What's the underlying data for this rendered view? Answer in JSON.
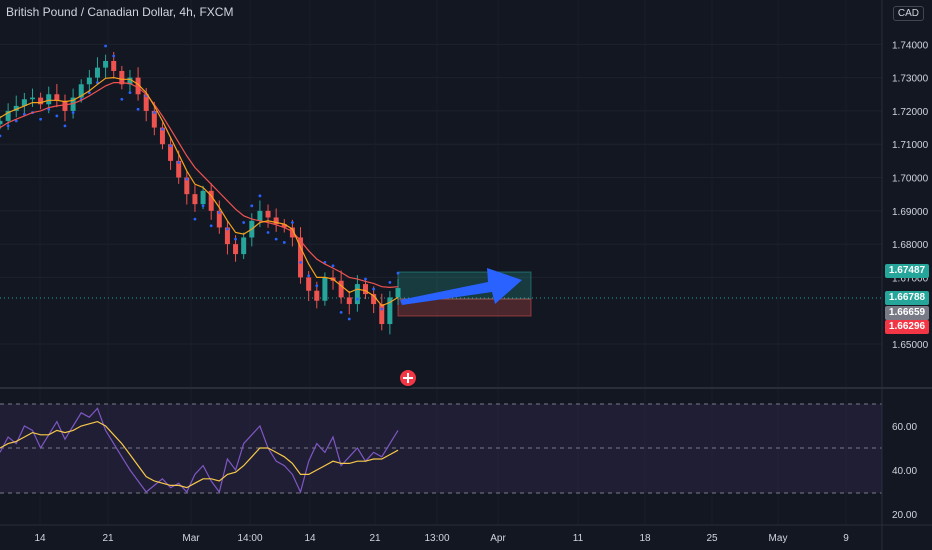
{
  "symbol_title": "British Pound / Canadian Dollar, 4h, FXCM",
  "currency_label": "CAD",
  "price_tags": {
    "target": "1.67487",
    "entry": "1.66788",
    "current": "1.66659",
    "stop": "1.66296"
  },
  "colors": {
    "background": "#131722",
    "bull": "#26a69a",
    "bear": "#ef5350",
    "ma_fast": "#f7a21b",
    "ma_slow": "#ef5350",
    "psar": "#2962ff",
    "rsi": "#7e57c2",
    "rsi_ma": "#f7c948",
    "arrow": "#2962ff"
  },
  "chart_data": [
    {
      "type": "line",
      "title": "",
      "y_ticks": [
        "1.74000",
        "1.73000",
        "1.72000",
        "1.71000",
        "1.70000",
        "1.69000",
        "1.68000",
        "1.67000",
        "1.65000"
      ],
      "x_ticks": [
        "14",
        "21",
        "Mar",
        "14:00",
        "14",
        "21",
        "13:00",
        "Apr",
        "11",
        "18",
        "25",
        "May",
        "9"
      ],
      "ylim": [
        1.644,
        1.744
      ],
      "series": [
        {
          "key": "close",
          "values": [
            1.717,
            1.72,
            1.7215,
            1.7235,
            1.724,
            1.722,
            1.725,
            1.723,
            1.72,
            1.724,
            1.728,
            1.73,
            1.733,
            1.735,
            1.732,
            1.728,
            1.73,
            1.725,
            1.72,
            1.715,
            1.71,
            1.705,
            1.7,
            1.695,
            1.692,
            1.696,
            1.69,
            1.685,
            1.68,
            1.677,
            1.682,
            1.687,
            1.69,
            1.688,
            1.686,
            1.685,
            1.682,
            1.67,
            1.666,
            1.663,
            1.67,
            1.669,
            1.664,
            1.662,
            1.668,
            1.665,
            1.662,
            1.656,
            1.664,
            1.6668
          ]
        },
        {
          "key": "ma_fast",
          "values": [
            1.718,
            1.7195,
            1.7205,
            1.7215,
            1.7225,
            1.7225,
            1.7232,
            1.7232,
            1.7228,
            1.7232,
            1.7245,
            1.726,
            1.728,
            1.7298,
            1.73,
            1.7295,
            1.7295,
            1.728,
            1.7255,
            1.7215,
            1.717,
            1.712,
            1.707,
            1.702,
            1.698,
            1.697,
            1.6945,
            1.691,
            1.687,
            1.6835,
            1.683,
            1.6845,
            1.6865,
            1.687,
            1.6865,
            1.686,
            1.6845,
            1.679,
            1.674,
            1.67,
            1.67,
            1.6695,
            1.6675,
            1.6655,
            1.6665,
            1.666,
            1.6645,
            1.6615,
            1.6625,
            1.664
          ]
        },
        {
          "key": "ma_slow",
          "values": [
            1.715,
            1.7165,
            1.7175,
            1.7185,
            1.7195,
            1.72,
            1.721,
            1.7215,
            1.7218,
            1.7222,
            1.7232,
            1.7245,
            1.726,
            1.7275,
            1.7285,
            1.7285,
            1.7282,
            1.727,
            1.725,
            1.722,
            1.7185,
            1.7145,
            1.7105,
            1.7065,
            1.703,
            1.7005,
            1.698,
            1.6955,
            1.693,
            1.6905,
            1.6885,
            1.6875,
            1.687,
            1.6865,
            1.6858,
            1.685,
            1.6838,
            1.681,
            1.678,
            1.6755,
            1.674,
            1.6728,
            1.6715,
            1.67,
            1.6695,
            1.6688,
            1.6682,
            1.6672,
            1.667,
            1.6672
          ]
        }
      ]
    },
    {
      "type": "line",
      "title": "",
      "y_ticks": [
        "60.00",
        "40.00",
        "20.00"
      ],
      "ylim": [
        16,
        74
      ],
      "series": [
        {
          "key": "rsi",
          "values": [
            48,
            55,
            52,
            60,
            58,
            50,
            56,
            62,
            54,
            60,
            66,
            64,
            68,
            58,
            52,
            46,
            40,
            35,
            30,
            33,
            36,
            32,
            34,
            30,
            38,
            42,
            35,
            30,
            45,
            40,
            52,
            56,
            60,
            50,
            44,
            42,
            38,
            30,
            44,
            52,
            48,
            55,
            42,
            46,
            50,
            44,
            48,
            46,
            52,
            58
          ]
        },
        {
          "key": "rsi_ma",
          "values": [
            50,
            52,
            53,
            55,
            57,
            56,
            56,
            58,
            57,
            58,
            60,
            61,
            62,
            60,
            56,
            52,
            47,
            42,
            37,
            35,
            34,
            33,
            33,
            32,
            34,
            36,
            36,
            35,
            38,
            39,
            42,
            46,
            50,
            50,
            48,
            46,
            43,
            38,
            38,
            40,
            42,
            44,
            43,
            43,
            44,
            44,
            45,
            45,
            47,
            49
          ]
        }
      ]
    }
  ]
}
